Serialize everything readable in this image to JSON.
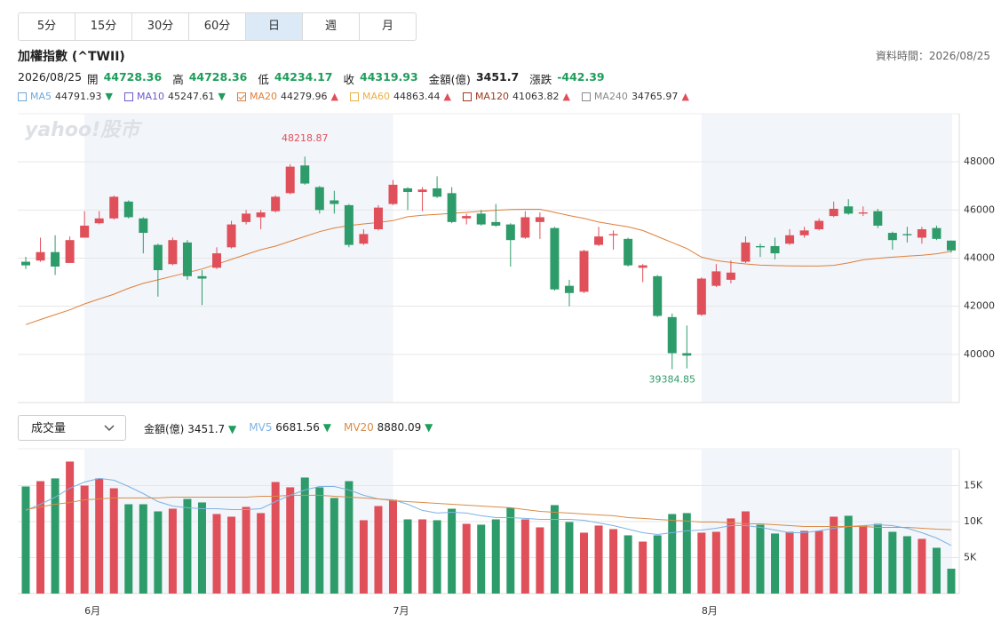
{
  "tabs": {
    "items": [
      "5分",
      "15分",
      "30分",
      "60分",
      "日",
      "週",
      "月"
    ],
    "active": 4
  },
  "header": {
    "title": "加權指數 (^TWII)",
    "data_time": "資料時間：2026/08/25"
  },
  "quote": {
    "date": "2026/08/25",
    "open_label": "開",
    "high_label": "高",
    "low_label": "低",
    "close_label": "收",
    "amount_label": "金額(億)",
    "change_label": "漲跌",
    "change": -442.39
  },
  "chart_data": [
    {
      "type": "candlestick",
      "watermark": "yahoo!股市",
      "categories": [
        null,
        null,
        null,
        null,
        "6月",
        null,
        null,
        null,
        null,
        null,
        null,
        null,
        null,
        null,
        null,
        null,
        null,
        null,
        null,
        null,
        null,
        null,
        null,
        null,
        null,
        "7月",
        null,
        null,
        null,
        null,
        null,
        null,
        null,
        null,
        null,
        null,
        null,
        null,
        null,
        null,
        null,
        null,
        null,
        null,
        null,
        null,
        "8月",
        null,
        null,
        null,
        null,
        null,
        null,
        null,
        null,
        null,
        null,
        null,
        null,
        null,
        null,
        null,
        null,
        null
      ],
      "open": [
        43850,
        43900,
        44250,
        43800,
        44850,
        45450,
        45650,
        46350,
        45650,
        44550,
        43750,
        44650,
        43250,
        43600,
        44450,
        45500,
        45700,
        45950,
        46700,
        47850,
        46950,
        46400,
        46200,
        44600,
        45200,
        46250,
        46900,
        46750,
        46900,
        46700,
        45650,
        45850,
        45500,
        45400,
        44850,
        45500,
        45250,
        42850,
        42600,
        44550,
        44950,
        44800,
        43600,
        43250,
        41550,
        40050,
        41650,
        42850,
        43100,
        43850,
        44500,
        44500,
        44600,
        44950,
        45200,
        45750,
        46150,
        45850,
        45950,
        45050,
        45000,
        44850,
        45250,
        44728.36
      ],
      "high": [
        44050,
        44850,
        44950,
        44900,
        45950,
        45950,
        46600,
        46400,
        45700,
        44600,
        44850,
        44750,
        43500,
        44450,
        45550,
        46000,
        46000,
        46600,
        47900,
        48218.87,
        47000,
        46800,
        46250,
        45200,
        46200,
        47250,
        46950,
        46950,
        47400,
        46950,
        45850,
        46000,
        46250,
        45450,
        45950,
        45900,
        45300,
        43100,
        44350,
        45300,
        45150,
        44850,
        43750,
        43300,
        41700,
        41200,
        43200,
        43750,
        43900,
        44900,
        44600,
        44850,
        45200,
        45300,
        45650,
        46350,
        46450,
        46150,
        46050,
        45100,
        45300,
        45300,
        45350,
        44728.36
      ],
      "low": [
        43550,
        43850,
        43300,
        43800,
        44850,
        45400,
        45600,
        45650,
        44200,
        42400,
        43700,
        43100,
        42050,
        43550,
        44400,
        45400,
        45200,
        45900,
        46650,
        47050,
        45850,
        45850,
        44450,
        44550,
        45150,
        46200,
        46000,
        45950,
        46500,
        45450,
        45400,
        45350,
        45300,
        43650,
        44800,
        44800,
        42650,
        42000,
        42550,
        44500,
        44350,
        43650,
        43000,
        41550,
        39384.85,
        39420,
        41600,
        42800,
        42950,
        43800,
        44050,
        43950,
        44550,
        44850,
        45150,
        45700,
        45800,
        45750,
        45250,
        44350,
        44650,
        44600,
        44750,
        44234.17
      ],
      "close": [
        43700,
        44250,
        43650,
        44750,
        45350,
        45650,
        46550,
        45700,
        45050,
        43500,
        44750,
        43250,
        43150,
        44200,
        45400,
        45850,
        45900,
        46550,
        47800,
        47100,
        46000,
        46250,
        44550,
        45000,
        46100,
        47050,
        46750,
        46850,
        46550,
        45500,
        45750,
        45400,
        45350,
        44750,
        45700,
        45700,
        42700,
        42550,
        44300,
        44900,
        45000,
        43700,
        43700,
        41600,
        40050,
        39950,
        43150,
        43450,
        43400,
        44650,
        44450,
        44200,
        44950,
        45150,
        45550,
        46050,
        45850,
        45900,
        45350,
        44750,
        44950,
        45200,
        44800,
        44319.93
      ],
      "up_color": "#e0505a",
      "down_color": "#2e9b6a",
      "arrow_colors": {
        "▼": "#1f9d5c",
        "▲": "#e0505a"
      },
      "series": [
        {
          "name": "MA5",
          "color": "#6fa8dc",
          "last": 44791.93,
          "arrow": "▼"
        },
        {
          "name": "MA10",
          "color": "#6a5acd",
          "last": 45247.61,
          "arrow": "▼"
        },
        {
          "name": "MA20",
          "color": "#e07f3a",
          "arrow": "▲",
          "checked": true,
          "values": [
            41240,
            41450,
            41650,
            41850,
            42100,
            42300,
            42500,
            42750,
            42950,
            43100,
            43250,
            43400,
            43550,
            43750,
            43950,
            44150,
            44350,
            44500,
            44700,
            44900,
            45100,
            45250,
            45350,
            45420,
            45480,
            45560,
            45720,
            45780,
            45820,
            45860,
            45900,
            45950,
            45990,
            46020,
            46030,
            46030,
            45900,
            45770,
            45650,
            45500,
            45400,
            45300,
            45150,
            44900,
            44650,
            44400,
            44040,
            43900,
            43820,
            43760,
            43710,
            43690,
            43680,
            43670,
            43670,
            43700,
            43800,
            43930,
            43990,
            44040,
            44080,
            44120,
            44180,
            44279.96
          ]
        },
        {
          "name": "MA60",
          "color": "#e8b04a",
          "last": 44863.44,
          "arrow": "▲"
        },
        {
          "name": "MA120",
          "color": "#9b3b1e",
          "last": 41063.82,
          "arrow": "▲"
        },
        {
          "name": "MA240",
          "color": "#8a8a8a",
          "last": 34765.97,
          "arrow": "▲"
        }
      ],
      "ylim": [
        38000,
        50000
      ],
      "yticks": [
        40000,
        42000,
        44000,
        46000,
        48000
      ],
      "grid": true,
      "shade_color": "#f2f5f9"
    },
    {
      "type": "bar",
      "selector": "成交量",
      "arrow": "▼",
      "values": [
        14880,
        15620,
        16000,
        18340,
        15000,
        16000,
        14630,
        12410,
        12410,
        11420,
        11790,
        13150,
        12660,
        11050,
        10680,
        12040,
        11180,
        15500,
        14760,
        16120,
        14760,
        13280,
        15620,
        10190,
        12160,
        13030,
        10310,
        10310,
        10190,
        11790,
        9690,
        9570,
        10310,
        11920,
        10310,
        9200,
        12290,
        9940,
        8460,
        9450,
        8950,
        8090,
        7220,
        8090,
        11050,
        11180,
        8460,
        8580,
        10440,
        11420,
        9570,
        8340,
        8580,
        8710,
        8710,
        10680,
        10810,
        9450,
        9690,
        8580,
        7970,
        7600,
        6360,
        3451.7
      ],
      "series": [
        {
          "name": "MV5",
          "color": "#7fb2e5",
          "arrow": "▼",
          "values": [
            11550,
            12410,
            13400,
            14630,
            15500,
            16000,
            15750,
            14880,
            13890,
            12780,
            12160,
            11920,
            11790,
            11790,
            11670,
            11670,
            11790,
            12780,
            13650,
            14390,
            14880,
            14880,
            14390,
            13650,
            13150,
            13030,
            12410,
            11550,
            11180,
            11300,
            11180,
            10810,
            10560,
            10560,
            10440,
            10310,
            10310,
            10310,
            10190,
            9820,
            9450,
            8950,
            8460,
            8210,
            8460,
            8710,
            8830,
            9080,
            9450,
            9450,
            9200,
            8830,
            8460,
            8460,
            8710,
            9080,
            9320,
            9450,
            9570,
            9450,
            9080,
            8460,
            7720,
            6681.56
          ]
        },
        {
          "name": "MV20",
          "color": "#d98c4a",
          "arrow": "▼",
          "values": [
            11670,
            12040,
            12410,
            12660,
            13030,
            13150,
            13280,
            13280,
            13280,
            13280,
            13400,
            13400,
            13400,
            13400,
            13400,
            13400,
            13520,
            13520,
            13650,
            13650,
            13650,
            13520,
            13400,
            13280,
            13150,
            12910,
            12780,
            12660,
            12530,
            12410,
            12290,
            12160,
            12040,
            11920,
            11670,
            11420,
            11300,
            11180,
            11050,
            10930,
            10810,
            10560,
            10440,
            10310,
            10190,
            10070,
            9940,
            9940,
            9820,
            9690,
            9690,
            9570,
            9450,
            9320,
            9320,
            9320,
            9320,
            9320,
            9200,
            9200,
            9200,
            9080,
            8950,
            8880.09
          ]
        }
      ],
      "ylim": [
        0,
        20000
      ],
      "yticks": [
        {
          "value": 5000,
          "label": "5K"
        },
        {
          "value": 10000,
          "label": "10K"
        },
        {
          "value": 15000,
          "label": "15K"
        }
      ],
      "grid": true
    }
  ]
}
